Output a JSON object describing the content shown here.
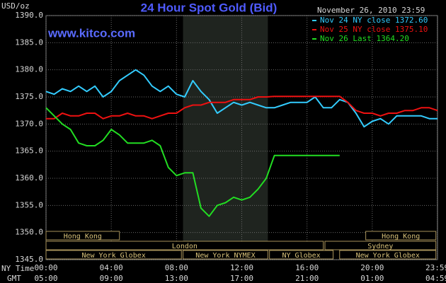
{
  "chart_data": {
    "type": "line",
    "title": "24 Hour Spot Gold (Bid)",
    "watermark": "www.kitco.com",
    "timestamp": "November 26, 2010 23:59",
    "ylabel": "USD/oz",
    "x_row_labels": [
      "NY Time",
      "GMT"
    ],
    "xlim": [
      0,
      24
    ],
    "xticks": [
      {
        "value": 0,
        "label": "00:00"
      },
      {
        "value": 4,
        "label": "04:00"
      },
      {
        "value": 8,
        "label": "08:00"
      },
      {
        "value": 12,
        "label": "12:00"
      },
      {
        "value": 16,
        "label": "16:00"
      },
      {
        "value": 20,
        "label": "20:00"
      },
      {
        "value": 23.983,
        "label": "23:59"
      }
    ],
    "gmt_labels": [
      "05:00",
      "09:00",
      "13:00",
      "17:00",
      "21:00",
      "01:00",
      "04:59"
    ],
    "ylim": [
      1345,
      1390
    ],
    "yticks": [
      {
        "value": 1345,
        "label": "1345.0"
      },
      {
        "value": 1350,
        "label": "1350.0"
      },
      {
        "value": 1355,
        "label": "1355.0"
      },
      {
        "value": 1360,
        "label": "1360.0"
      },
      {
        "value": 1365,
        "label": "1365.0"
      },
      {
        "value": 1370,
        "label": "1370.0"
      },
      {
        "value": 1375,
        "label": "1375.0"
      },
      {
        "value": 1380,
        "label": "1380.0"
      },
      {
        "value": 1385,
        "label": "1385.0"
      },
      {
        "value": 1390,
        "label": "1390.0"
      }
    ],
    "grid": true,
    "highlight": [
      8.4,
      13.6
    ],
    "sessions": [
      {
        "label": "Hong Kong",
        "start": 0,
        "end": 4.5,
        "row": 0
      },
      {
        "label": "Hong Kong",
        "start": 19.6,
        "end": 23.9,
        "row": 0
      },
      {
        "label": "London",
        "start": 0,
        "end": 17,
        "row": 1
      },
      {
        "label": "Sydney",
        "start": 17.1,
        "end": 23.9,
        "row": 1
      },
      {
        "label": "New York Globex",
        "start": 0,
        "end": 8.3,
        "row": 2
      },
      {
        "label": "New York NYMEX",
        "start": 8.4,
        "end": 13.6,
        "row": 2
      },
      {
        "label": "NY Globex",
        "start": 13.7,
        "end": 17.6,
        "row": 2
      },
      {
        "label": "New York Globex",
        "start": 18,
        "end": 23.9,
        "row": 2
      }
    ],
    "x": [
      0,
      0.5,
      1,
      1.5,
      2,
      2.5,
      3,
      3.5,
      4,
      4.5,
      5,
      5.5,
      6,
      6.5,
      7,
      7.5,
      8,
      8.5,
      9,
      9.5,
      10,
      10.5,
      11,
      11.5,
      12,
      12.5,
      13,
      13.5,
      14,
      14.5,
      15,
      15.5,
      16,
      16.5,
      17,
      17.5,
      18,
      18.5,
      19,
      19.5,
      20,
      20.5,
      21,
      21.5,
      22,
      22.5,
      23,
      23.5,
      24
    ],
    "series": [
      {
        "name": "Nov 24 NY close 1372.60",
        "color": "#33ccff",
        "values": [
          1376,
          1375.5,
          1376.5,
          1376,
          1377,
          1376,
          1377,
          1375,
          1376,
          1378,
          1379,
          1380,
          1379,
          1377,
          1376,
          1377,
          1375.5,
          1375,
          1378,
          1376,
          1374.5,
          1372,
          1373,
          1374,
          1373.5,
          1374,
          1373.5,
          1373,
          1373,
          1373.5,
          1374,
          1374,
          1374,
          1375,
          1373,
          1373,
          1374.5,
          1374,
          1372,
          1369.5,
          1370.5,
          1371,
          1370,
          1371.5,
          1371.5,
          1371.5,
          1371.5,
          1371,
          1371
        ]
      },
      {
        "name": "Nov 25 NY close 1375.10",
        "color": "#ee1111",
        "values": [
          1371,
          1371,
          1372,
          1371.5,
          1371.5,
          1372,
          1372,
          1371,
          1371.5,
          1371.5,
          1372,
          1371.5,
          1371.5,
          1371,
          1371.5,
          1372,
          1372,
          1373,
          1373.5,
          1373.5,
          1374,
          1374,
          1374,
          1374.5,
          1374.5,
          1374.5,
          1375,
          1375,
          1375.1,
          1375.1,
          1375.1,
          1375.1,
          1375.1,
          1375.1,
          1375.1,
          1375.1,
          1375.1,
          1374,
          1372.5,
          1372,
          1372,
          1371.5,
          1372,
          1372,
          1372.5,
          1372.5,
          1373,
          1373,
          1372.5
        ]
      },
      {
        "name": "Nov 26 Last 1364.20",
        "color": "#22dd22",
        "values": [
          1373,
          1371.5,
          1370,
          1369,
          1366.5,
          1366,
          1366,
          1367,
          1369,
          1368,
          1366.5,
          1366.5,
          1366.5,
          1367,
          1366,
          1362,
          1360.5,
          1361,
          1361,
          1354.5,
          1353,
          1355,
          1355.5,
          1356.5,
          1356,
          1356.5,
          1358,
          1360,
          1364.2,
          1364.2,
          1364.2,
          1364.2,
          1364.2,
          1364.2,
          1364.2,
          1364.2,
          1364.2,
          null,
          null,
          null,
          null,
          null,
          null,
          null,
          null,
          null,
          null,
          null,
          null
        ]
      }
    ]
  }
}
